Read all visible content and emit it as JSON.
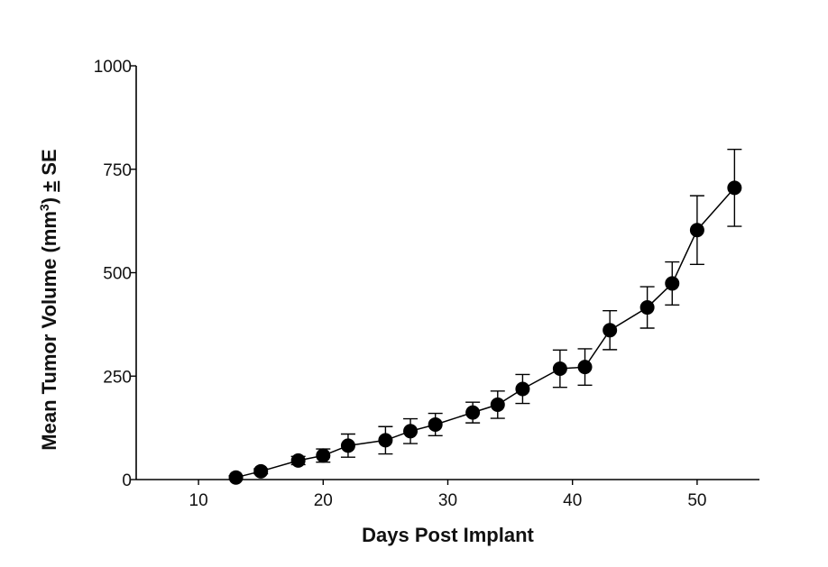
{
  "chart_data": {
    "type": "line",
    "xlabel": "Days Post Implant",
    "ylabel_parts": [
      "Mean Tumor Volume (mm",
      "3",
      ") ",
      "±",
      " SE"
    ],
    "xlim": [
      5,
      55
    ],
    "ylim": [
      0,
      1000
    ],
    "xticks": [
      10,
      20,
      30,
      40,
      50
    ],
    "yticks": [
      0,
      250,
      500,
      750,
      1000
    ],
    "grid": false,
    "series": [
      {
        "points": [
          {
            "x": 13,
            "y": 5,
            "err": 4
          },
          {
            "x": 15,
            "y": 20,
            "err": 6
          },
          {
            "x": 18,
            "y": 46,
            "err": 10
          },
          {
            "x": 20,
            "y": 58,
            "err": 16
          },
          {
            "x": 22,
            "y": 82,
            "err": 28
          },
          {
            "x": 25,
            "y": 95,
            "err": 33
          },
          {
            "x": 27,
            "y": 117,
            "err": 30
          },
          {
            "x": 29,
            "y": 133,
            "err": 27
          },
          {
            "x": 32,
            "y": 162,
            "err": 25
          },
          {
            "x": 34,
            "y": 181,
            "err": 33
          },
          {
            "x": 36,
            "y": 219,
            "err": 35
          },
          {
            "x": 39,
            "y": 268,
            "err": 45
          },
          {
            "x": 41,
            "y": 272,
            "err": 44
          },
          {
            "x": 43,
            "y": 361,
            "err": 47
          },
          {
            "x": 46,
            "y": 416,
            "err": 50
          },
          {
            "x": 48,
            "y": 474,
            "err": 52
          },
          {
            "x": 50,
            "y": 603,
            "err": 83
          },
          {
            "x": 53,
            "y": 705,
            "err": 93
          }
        ]
      }
    ]
  }
}
